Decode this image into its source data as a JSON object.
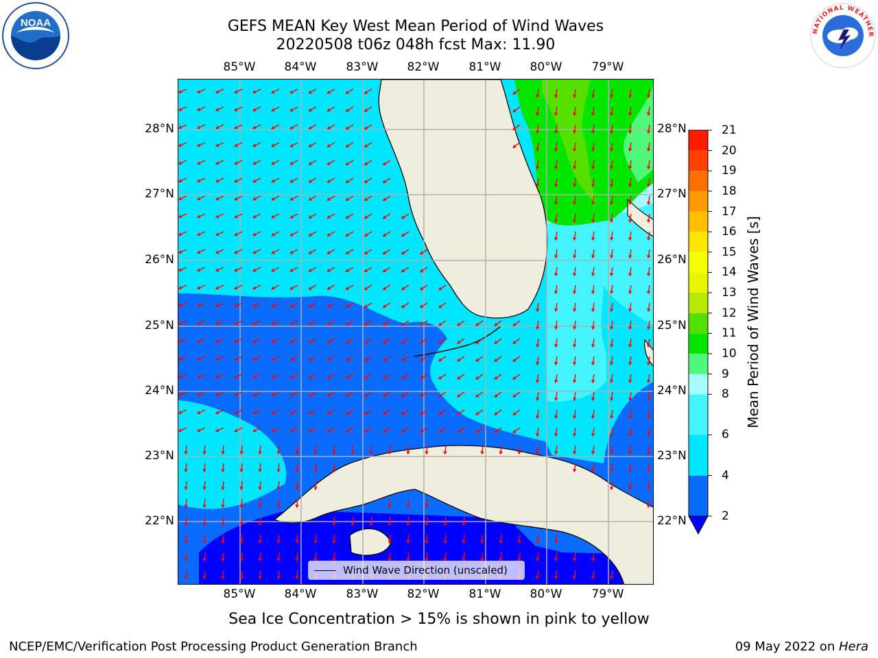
{
  "header": {
    "title_line1": "GEFS MEAN Key West Mean Period of Wind Waves",
    "title_line2": "20220508 t06z 048h fcst   Max: 11.90"
  },
  "logos": {
    "left": {
      "name": "noaa-logo",
      "text": "NOAA",
      "ring_text": "NATIONAL OCEANIC AND ATMOSPHERIC ADMINISTRATION · U.S. DEPARTMENT OF COMMERCE"
    },
    "right": {
      "name": "nws-logo",
      "ring_text": "NATIONAL WEATHER SERVICE"
    }
  },
  "map": {
    "lon_labels": [
      "85°W",
      "84°W",
      "83°W",
      "82°W",
      "81°W",
      "80°W",
      "79°W"
    ],
    "lat_labels": [
      "28°N",
      "27°N",
      "26°N",
      "25°N",
      "24°N",
      "23°N",
      "22°N"
    ],
    "legend_label": "Wind Wave Direction (unscaled)",
    "arrow_color": "#ff0000",
    "land_color": "#efedde",
    "grid_color": "#b0b0b0"
  },
  "colorbar": {
    "label": "Mean Period of Wind Waves [s]",
    "ticks": [
      "2",
      "4",
      "6",
      "8",
      "9",
      "10",
      "11",
      "12",
      "13",
      "14",
      "15",
      "16",
      "17",
      "18",
      "19",
      "20",
      "21"
    ],
    "levels": [
      {
        "from": 2,
        "to": 4,
        "color": "#0a6cff"
      },
      {
        "from": 4,
        "to": 6,
        "color": "#00e6ff"
      },
      {
        "from": 6,
        "to": 8,
        "color": "#44f5ff"
      },
      {
        "from": 8,
        "to": 9,
        "color": "#a4fcff"
      },
      {
        "from": 9,
        "to": 10,
        "color": "#4ff77b"
      },
      {
        "from": 10,
        "to": 11,
        "color": "#00e600"
      },
      {
        "from": 11,
        "to": 12,
        "color": "#55e000"
      },
      {
        "from": 12,
        "to": 13,
        "color": "#b7ea00"
      },
      {
        "from": 13,
        "to": 14,
        "color": "#e6f500"
      },
      {
        "from": 14,
        "to": 15,
        "color": "#f5ff00"
      },
      {
        "from": 15,
        "to": 16,
        "color": "#ffe600"
      },
      {
        "from": 16,
        "to": 17,
        "color": "#ffbf00"
      },
      {
        "from": 17,
        "to": 18,
        "color": "#ff9900"
      },
      {
        "from": 18,
        "to": 19,
        "color": "#ff6e00"
      },
      {
        "from": 19,
        "to": 20,
        "color": "#ff4000"
      },
      {
        "from": 20,
        "to": 21,
        "color": "#ff1a00"
      }
    ],
    "extend_color": "#0000ff"
  },
  "note": "Sea Ice Concentration > 15% is shown in pink to yellow",
  "footer": {
    "left": "NCEP/EMC/Verification Post Processing Product Generation Branch",
    "right_date": "09 May 2022 on ",
    "right_host": "Hera"
  }
}
